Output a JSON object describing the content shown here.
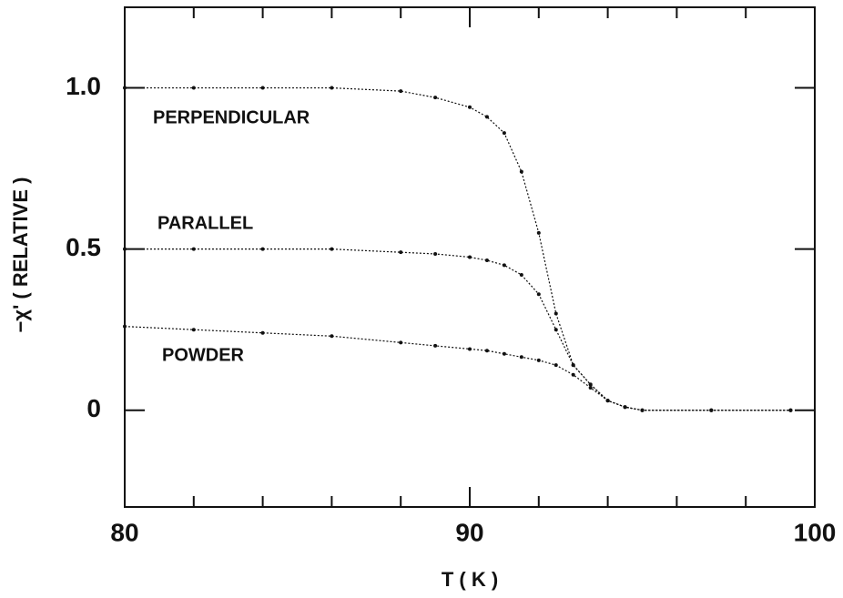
{
  "chart_data": {
    "type": "line",
    "xlabel": "T ( K )",
    "ylabel": "−χ' ( RELATIVE )",
    "x": [
      80,
      82,
      84,
      86,
      88,
      89,
      90,
      90.5,
      91,
      91.5,
      92,
      92.5,
      93,
      93.5,
      94,
      94.5,
      95,
      97,
      99.3
    ],
    "series": [
      {
        "name": "PERPENDICULAR",
        "color": "#111111",
        "values": [
          1,
          1,
          1,
          1,
          0.99,
          0.97,
          0.94,
          0.91,
          0.86,
          0.74,
          0.55,
          0.3,
          0.14,
          0.08,
          0.03,
          0.01,
          0,
          0,
          0
        ]
      },
      {
        "name": "PARALLEL",
        "color": "#111111",
        "values": [
          0.5,
          0.5,
          0.5,
          0.5,
          0.49,
          0.485,
          0.475,
          0.465,
          0.45,
          0.42,
          0.36,
          0.25,
          0.14,
          0.08,
          0.03,
          0.01,
          0,
          0,
          0
        ]
      },
      {
        "name": "POWDER",
        "color": "#111111",
        "values": [
          0.26,
          0.25,
          0.24,
          0.23,
          0.21,
          0.2,
          0.19,
          0.185,
          0.175,
          0.165,
          0.155,
          0.14,
          0.11,
          0.07,
          0.03,
          0.01,
          0,
          0,
          0
        ]
      }
    ],
    "xlim": [
      80,
      100
    ],
    "xticks": [
      80,
      90,
      100
    ],
    "xminor_ticks": [
      82,
      84,
      86,
      88,
      92,
      94,
      96,
      98
    ],
    "ylim": [
      -0.3,
      1.25
    ],
    "yticks": [
      0,
      0.5,
      {
        "value": 1,
        "label": "1.0"
      }
    ],
    "grid": false
  }
}
